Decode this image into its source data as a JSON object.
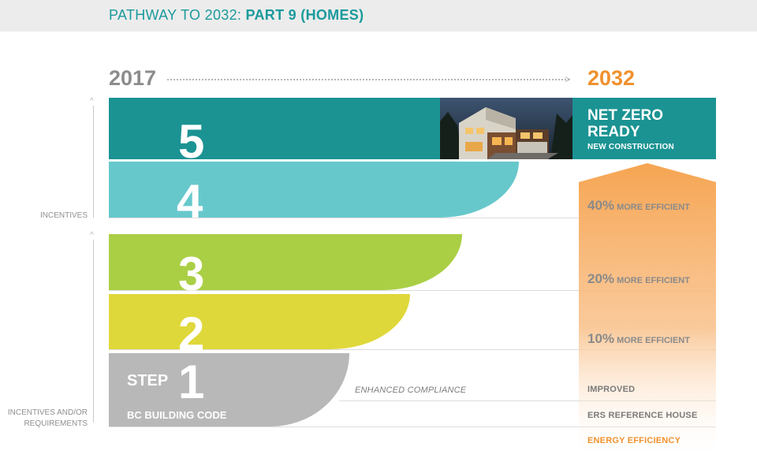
{
  "header": {
    "title_light": "PATHWAY TO 2032: ",
    "title_bold": "PART 9 (HOMES)"
  },
  "timeline": {
    "start_year": "2017",
    "end_year": "2032"
  },
  "side_labels": {
    "incentives": "INCENTIVES",
    "incentives_or_requirements_line1": "INCENTIVES AND/OR",
    "incentives_or_requirements_line2": "REQUIREMENTS"
  },
  "steps": {
    "step5": {
      "number": "5"
    },
    "step4": {
      "number": "4"
    },
    "step3": {
      "number": "3"
    },
    "step2": {
      "number": "2"
    },
    "step1": {
      "number": "1",
      "word": "STEP",
      "code_label": "BC BUILDING CODE"
    }
  },
  "enhanced_compliance": "ENHANCED COMPLIANCE",
  "net_zero": {
    "title_line1": "NET ZERO",
    "title_line2": "READY",
    "subtitle": "NEW CONSTRUCTION"
  },
  "efficiency": {
    "step4": {
      "percent": "40%",
      "text": " MORE EFFICIENT"
    },
    "step3": {
      "percent": "20%",
      "text": " MORE EFFICIENT"
    },
    "step2": {
      "percent": "10%",
      "text": " MORE EFFICIENT"
    }
  },
  "bottom_right": {
    "improved": "IMPROVED",
    "ers_reference": "ERS REFERENCE HOUSE",
    "energy_efficiency": "ENERGY EFFICIENCY"
  },
  "colors": {
    "teal_dark": "#1b9393",
    "teal_light": "#67c8cc",
    "green": "#aacf45",
    "yellow": "#dfd83a",
    "grey": "#b9b8b8",
    "orange": "#f0912e"
  }
}
